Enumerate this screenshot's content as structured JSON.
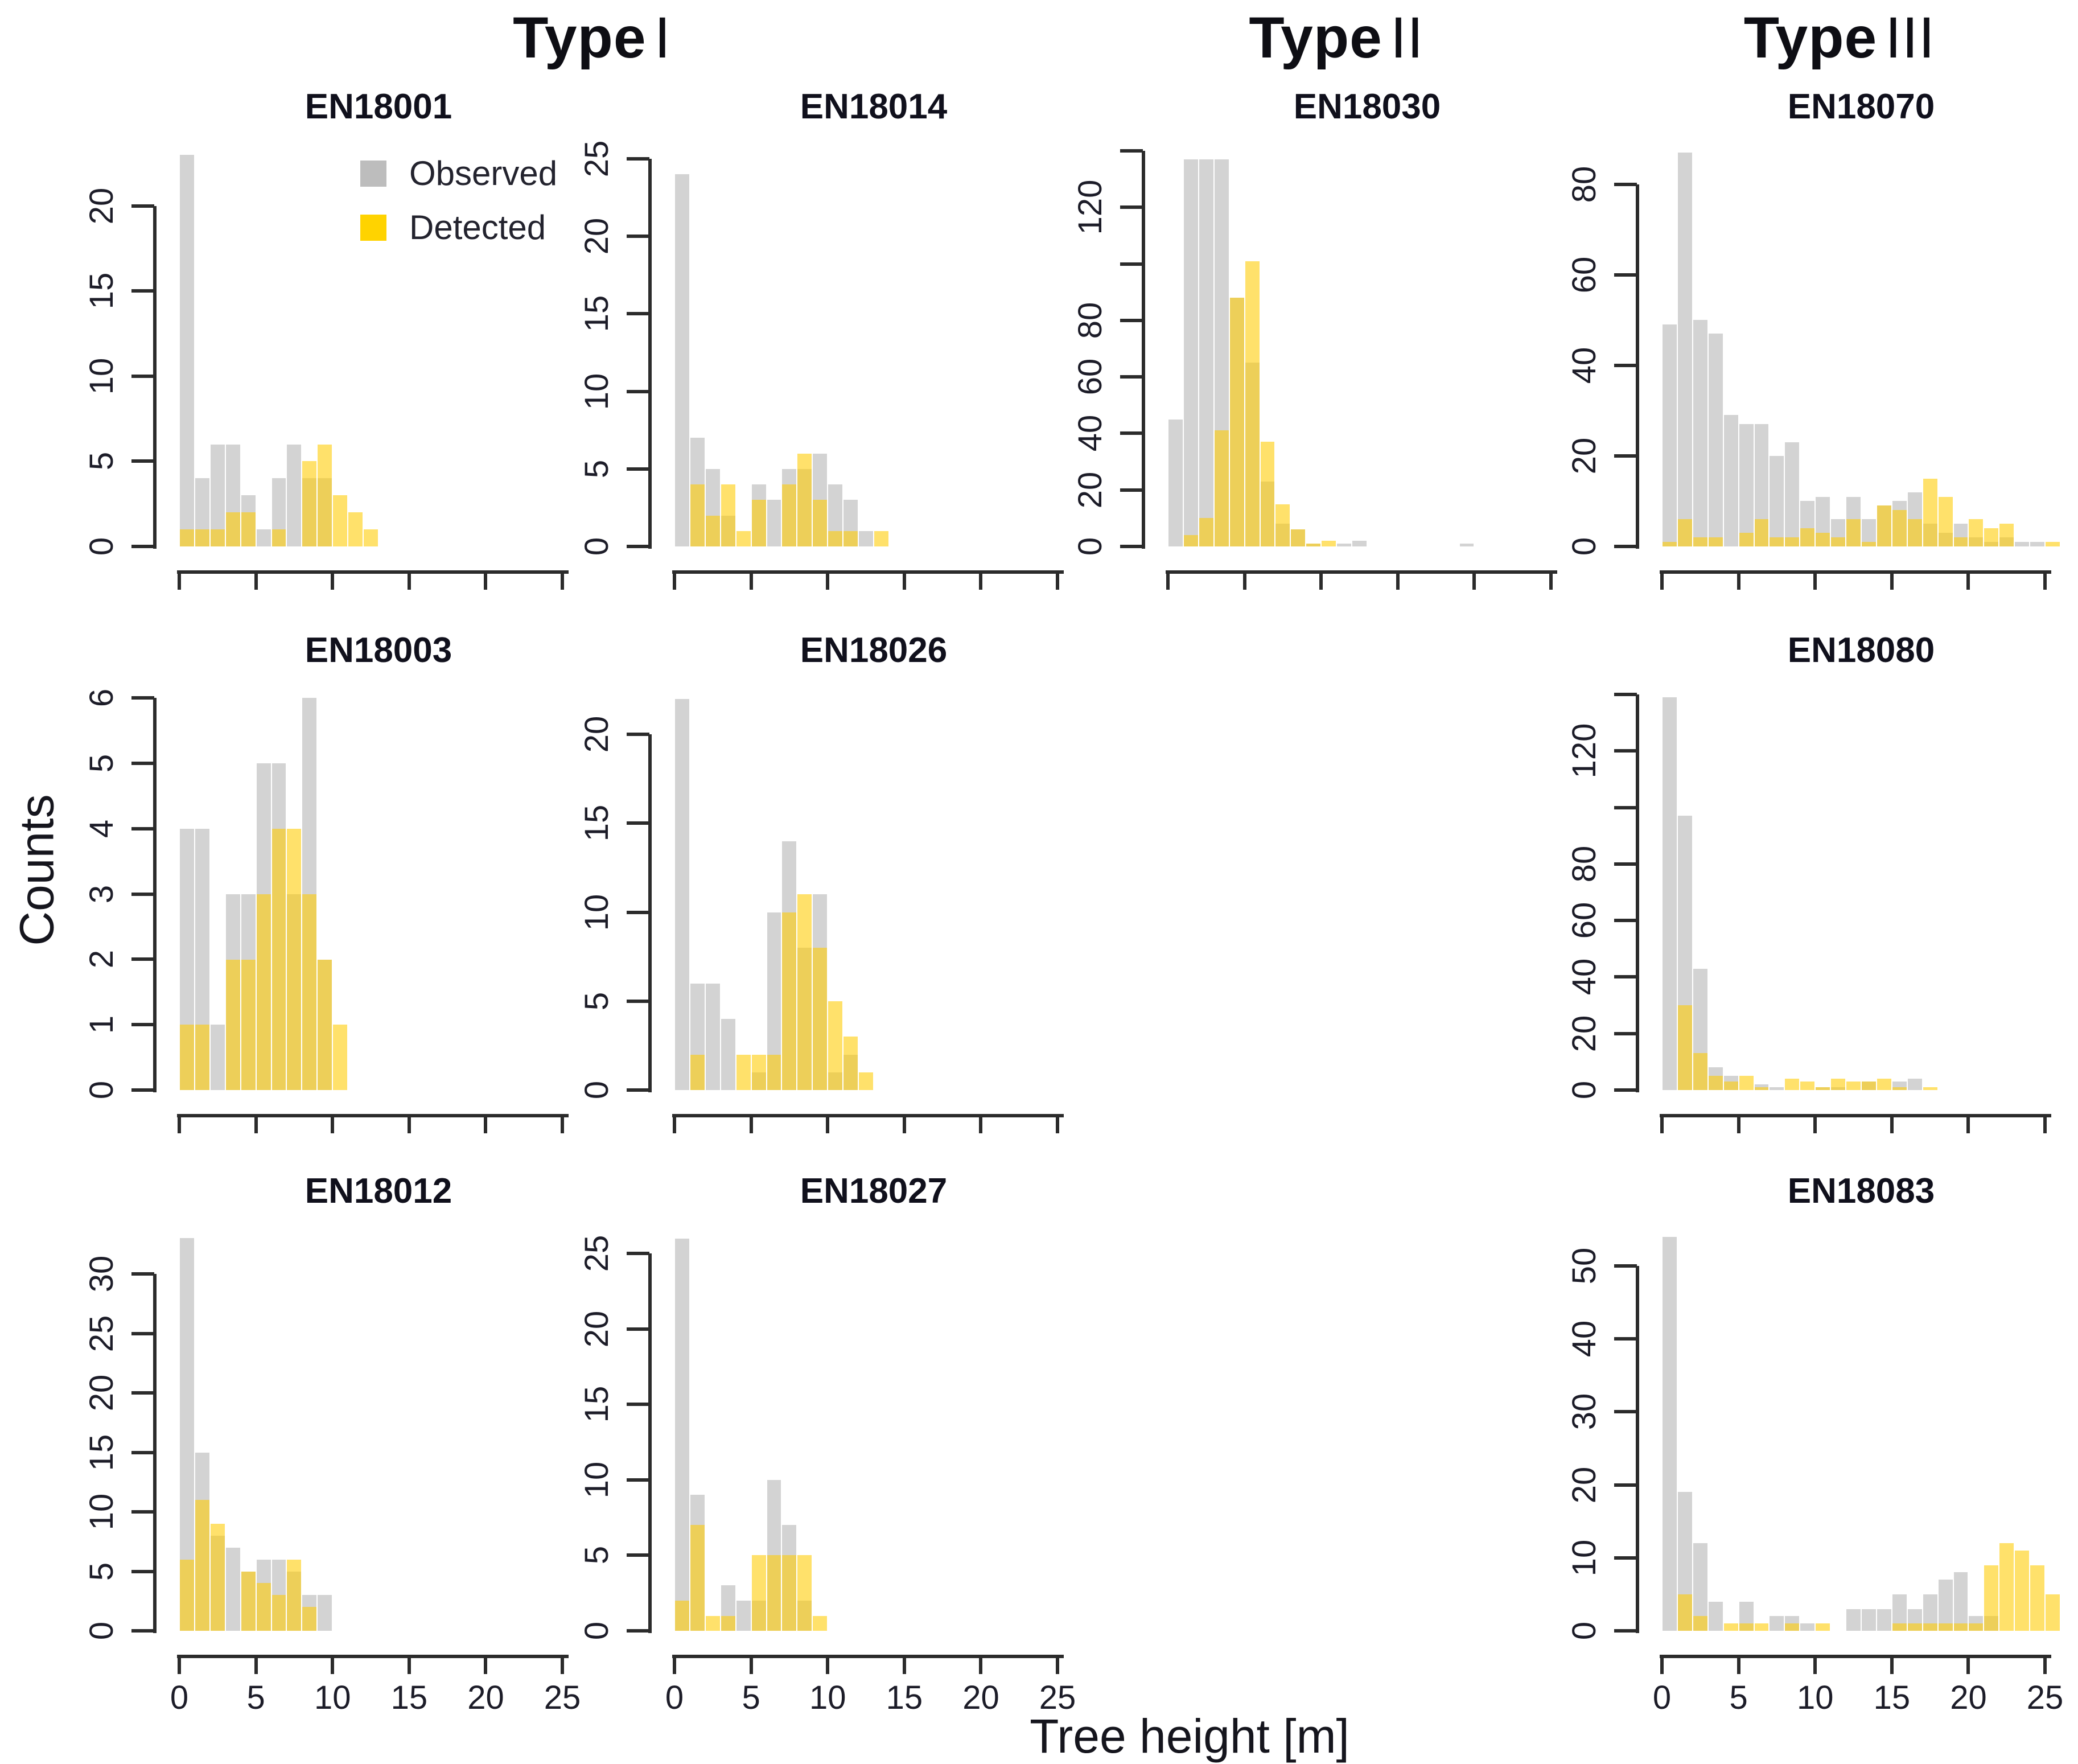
{
  "figure": {
    "headers": [
      {
        "bold": "Type",
        "numeral": "I"
      },
      {
        "bold": "Type",
        "numeral": "II"
      },
      {
        "bold": "Type",
        "numeral": "III"
      }
    ],
    "y_axis_label": "Counts",
    "x_axis_label": "Tree height [m]",
    "legend": {
      "observed": "Observed",
      "detected": "Detected"
    },
    "colors": {
      "observed_fill": "rgba(130,130,130,0.35)",
      "detected_fill": "rgba(255,204,0,0.58)",
      "legend_observed": "#bdbdbd",
      "legend_detected": "#ffd300",
      "axis": "#2b2b2b"
    }
  },
  "chart_data": {
    "type": "bar",
    "subtype": "overlaid-histograms",
    "title": "",
    "xlabel": "Tree height [m]",
    "ylabel": "Counts",
    "bin_start": 0,
    "bin_width": 1,
    "x_ticks": [
      0,
      5,
      10,
      15,
      20,
      25
    ],
    "x_tick_labels": [
      "0",
      "5",
      "10",
      "15",
      "20",
      "25"
    ],
    "series_names": [
      "Observed",
      "Detected"
    ],
    "panels": [
      {
        "id": "EN18001",
        "type_group": "I",
        "row": 1,
        "col": 1,
        "ymax": 23.4,
        "has_legend": true,
        "y_ticks": [
          {
            "v": 0,
            "label": "0"
          },
          {
            "v": 5,
            "label": "5"
          },
          {
            "v": 10,
            "label": "10"
          },
          {
            "v": 15,
            "label": "15"
          },
          {
            "v": 20,
            "label": "20"
          }
        ],
        "show_x_labels": false,
        "observed": [
          23,
          4,
          6,
          6,
          3,
          1,
          4,
          6,
          4,
          4,
          0,
          0,
          0
        ],
        "detected": [
          1,
          1,
          1,
          2,
          2,
          0,
          1,
          0,
          5,
          6,
          3,
          2,
          1
        ]
      },
      {
        "id": "EN18014",
        "type_group": "I",
        "row": 1,
        "col": 2,
        "ymax": 25.7,
        "has_legend": false,
        "y_ticks": [
          {
            "v": 0,
            "label": "0"
          },
          {
            "v": 5,
            "label": "5"
          },
          {
            "v": 10,
            "label": "10"
          },
          {
            "v": 15,
            "label": "15"
          },
          {
            "v": 20,
            "label": "20"
          },
          {
            "v": 25,
            "label": "25"
          }
        ],
        "show_x_labels": false,
        "observed": [
          24,
          7,
          5,
          2,
          0,
          4,
          3,
          5,
          5,
          6,
          4,
          3,
          1,
          0
        ],
        "detected": [
          0,
          4,
          2,
          4,
          1,
          3,
          0,
          4,
          6,
          3,
          1,
          1,
          0,
          1
        ]
      },
      {
        "id": "EN18030",
        "type_group": "II",
        "row": 1,
        "col": 3,
        "ymax": 141,
        "has_legend": false,
        "y_ticks": [
          {
            "v": 0,
            "label": "0"
          },
          {
            "v": 20,
            "label": "20"
          },
          {
            "v": 40,
            "label": "40"
          },
          {
            "v": 60,
            "label": "60"
          },
          {
            "v": 80,
            "label": "80"
          },
          {
            "v": 100,
            "label": ""
          },
          {
            "v": 120,
            "label": "120"
          },
          {
            "v": 140,
            "label": ""
          }
        ],
        "show_x_labels": false,
        "observed": [
          45,
          137,
          137,
          137,
          88,
          65,
          23,
          8,
          6,
          1,
          0,
          1,
          2,
          0,
          0,
          0,
          0,
          0,
          0,
          1
        ],
        "detected": [
          0,
          4,
          10,
          41,
          88,
          101,
          37,
          15,
          6,
          1,
          2,
          0,
          0,
          0,
          0,
          0,
          0,
          0,
          0,
          0
        ]
      },
      {
        "id": "EN18070",
        "type_group": "III",
        "row": 1,
        "col": 4,
        "ymax": 88,
        "has_legend": false,
        "y_ticks": [
          {
            "v": 0,
            "label": "0"
          },
          {
            "v": 20,
            "label": "20"
          },
          {
            "v": 40,
            "label": "40"
          },
          {
            "v": 60,
            "label": "60"
          },
          {
            "v": 80,
            "label": "80"
          }
        ],
        "show_x_labels": false,
        "observed": [
          49,
          87,
          50,
          47,
          29,
          27,
          27,
          20,
          23,
          10,
          11,
          6,
          11,
          6,
          9,
          10,
          12,
          5,
          3,
          5,
          2,
          1,
          2,
          1,
          1,
          0
        ],
        "detected": [
          1,
          6,
          2,
          2,
          0,
          3,
          6,
          2,
          2,
          4,
          3,
          2,
          6,
          1,
          9,
          8,
          6,
          15,
          11,
          2,
          6,
          4,
          5,
          0,
          0,
          1
        ]
      },
      {
        "id": "EN18003",
        "type_group": "I",
        "row": 2,
        "col": 1,
        "ymax": 6.1,
        "has_legend": false,
        "y_ticks": [
          {
            "v": 0,
            "label": "0"
          },
          {
            "v": 1,
            "label": "1"
          },
          {
            "v": 2,
            "label": "2"
          },
          {
            "v": 3,
            "label": "3"
          },
          {
            "v": 4,
            "label": "4"
          },
          {
            "v": 5,
            "label": "5"
          },
          {
            "v": 6,
            "label": "6"
          }
        ],
        "show_x_labels": false,
        "observed": [
          4,
          4,
          1,
          3,
          3,
          5,
          5,
          3,
          6,
          2,
          0
        ],
        "detected": [
          1,
          1,
          0,
          2,
          2,
          3,
          4,
          4,
          3,
          2,
          1
        ]
      },
      {
        "id": "EN18026",
        "type_group": "I",
        "row": 2,
        "col": 2,
        "ymax": 22.4,
        "has_legend": false,
        "y_ticks": [
          {
            "v": 0,
            "label": "0"
          },
          {
            "v": 5,
            "label": "5"
          },
          {
            "v": 10,
            "label": "10"
          },
          {
            "v": 15,
            "label": "15"
          },
          {
            "v": 20,
            "label": "20"
          }
        ],
        "show_x_labels": false,
        "observed": [
          22,
          6,
          6,
          4,
          0,
          1,
          10,
          14,
          8,
          11,
          1,
          2,
          0
        ],
        "detected": [
          0,
          2,
          0,
          0,
          2,
          2,
          2,
          10,
          11,
          8,
          5,
          3,
          1
        ]
      },
      {
        "id": "EN18080",
        "type_group": "III",
        "row": 2,
        "col": 4,
        "ymax": 141,
        "has_legend": false,
        "y_ticks": [
          {
            "v": 0,
            "label": "0"
          },
          {
            "v": 20,
            "label": "20"
          },
          {
            "v": 40,
            "label": "40"
          },
          {
            "v": 60,
            "label": "60"
          },
          {
            "v": 80,
            "label": "80"
          },
          {
            "v": 100,
            "label": ""
          },
          {
            "v": 120,
            "label": "120"
          },
          {
            "v": 140,
            "label": ""
          }
        ],
        "show_x_labels": false,
        "observed": [
          139,
          97,
          43,
          8,
          5,
          0,
          2,
          1,
          0,
          0,
          1,
          1,
          0,
          3,
          0,
          3,
          4,
          0
        ],
        "detected": [
          0,
          30,
          13,
          5,
          3,
          5,
          1,
          0,
          4,
          3,
          1,
          4,
          3,
          3,
          4,
          1,
          0,
          1
        ]
      },
      {
        "id": "EN18012",
        "type_group": "I",
        "row": 3,
        "col": 1,
        "ymax": 33.5,
        "has_legend": false,
        "y_ticks": [
          {
            "v": 0,
            "label": "0"
          },
          {
            "v": 5,
            "label": "5"
          },
          {
            "v": 10,
            "label": "10"
          },
          {
            "v": 15,
            "label": "15"
          },
          {
            "v": 20,
            "label": "20"
          },
          {
            "v": 25,
            "label": "25"
          },
          {
            "v": 30,
            "label": "30"
          }
        ],
        "show_x_labels": true,
        "observed": [
          33,
          15,
          8,
          7,
          5,
          6,
          6,
          5,
          3,
          3
        ],
        "detected": [
          6,
          11,
          9,
          0,
          5,
          4,
          3,
          6,
          2,
          0
        ]
      },
      {
        "id": "EN18027",
        "type_group": "I",
        "row": 3,
        "col": 2,
        "ymax": 26.4,
        "has_legend": false,
        "y_ticks": [
          {
            "v": 0,
            "label": "0"
          },
          {
            "v": 5,
            "label": "5"
          },
          {
            "v": 10,
            "label": "10"
          },
          {
            "v": 15,
            "label": "15"
          },
          {
            "v": 20,
            "label": "20"
          },
          {
            "v": 25,
            "label": "25"
          }
        ],
        "show_x_labels": true,
        "observed": [
          26,
          9,
          0,
          3,
          2,
          2,
          10,
          7,
          2,
          0
        ],
        "detected": [
          2,
          7,
          1,
          1,
          0,
          5,
          5,
          5,
          5,
          1
        ]
      },
      {
        "id": "EN18083",
        "type_group": "III",
        "row": 3,
        "col": 4,
        "ymax": 54.6,
        "has_legend": false,
        "y_ticks": [
          {
            "v": 0,
            "label": "0"
          },
          {
            "v": 10,
            "label": "10"
          },
          {
            "v": 20,
            "label": "20"
          },
          {
            "v": 30,
            "label": "30"
          },
          {
            "v": 40,
            "label": "40"
          },
          {
            "v": 50,
            "label": "50"
          }
        ],
        "show_x_labels": true,
        "observed": [
          54,
          19,
          12,
          4,
          0,
          4,
          0,
          2,
          2,
          1,
          0,
          0,
          3,
          3,
          3,
          5,
          3,
          5,
          7,
          8,
          2,
          2,
          0,
          0,
          0,
          0
        ],
        "detected": [
          0,
          5,
          2,
          0,
          1,
          1,
          1,
          0,
          1,
          0,
          1,
          0,
          0,
          0,
          0,
          1,
          1,
          1,
          1,
          1,
          1,
          9,
          12,
          11,
          9,
          5
        ]
      }
    ]
  }
}
